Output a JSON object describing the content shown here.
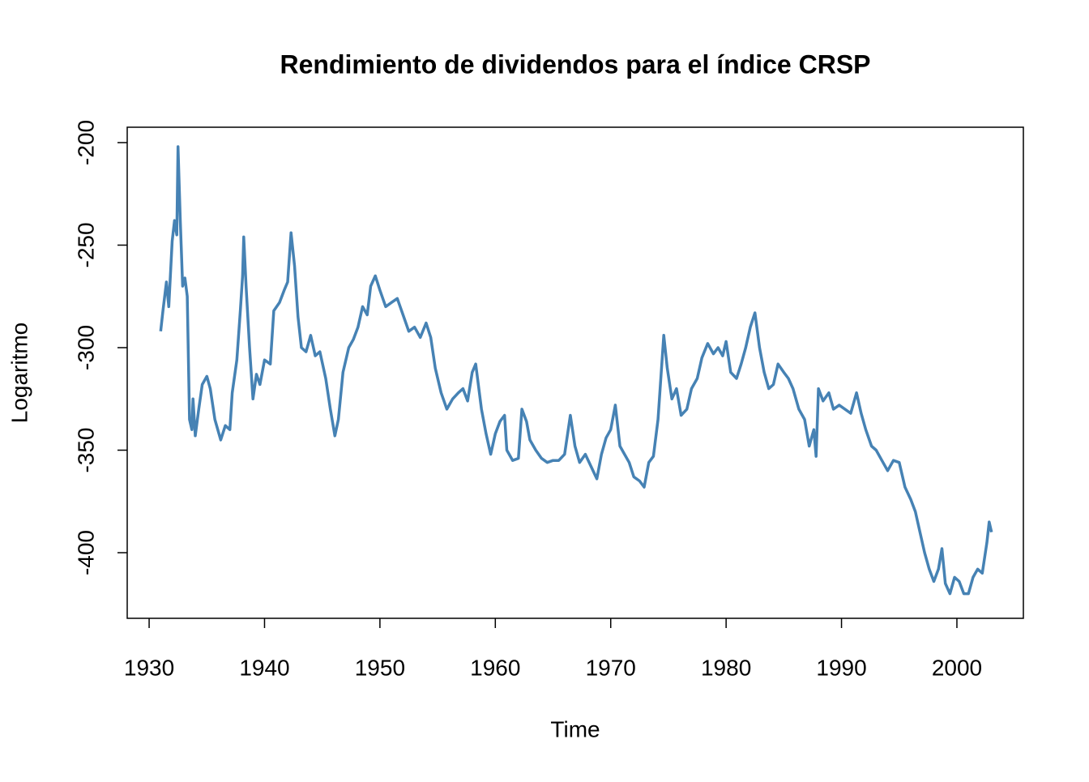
{
  "chart_data": {
    "type": "line",
    "title": "Rendimiento de dividendos para el índice CRSP",
    "x_label": "Time",
    "y_label": "Logaritmo",
    "xlim": [
      1928.1,
      2005.76
    ],
    "ylim": [
      -432,
      -192.5
    ],
    "xticks": [
      1930,
      1940,
      1950,
      1960,
      1970,
      1980,
      1990,
      2000
    ],
    "yticks": [
      -200,
      -250,
      -300,
      -350,
      -400
    ],
    "series": [
      {
        "color": "#4682b4",
        "x": [
          1931.0,
          1931.2,
          1931.5,
          1931.7,
          1932.0,
          1932.2,
          1932.4,
          1932.5,
          1932.6,
          1932.7,
          1932.9,
          1933.1,
          1933.3,
          1933.5,
          1933.7,
          1933.8,
          1934.0,
          1934.3,
          1934.6,
          1935.0,
          1935.3,
          1935.7,
          1936.2,
          1936.6,
          1937.0,
          1937.2,
          1937.6,
          1937.9,
          1938.1,
          1938.2,
          1938.4,
          1938.7,
          1939.0,
          1939.3,
          1939.6,
          1940.0,
          1940.5,
          1940.8,
          1941.3,
          1941.7,
          1942.0,
          1942.3,
          1942.6,
          1942.9,
          1943.2,
          1943.6,
          1944.0,
          1944.4,
          1944.8,
          1945.3,
          1945.7,
          1946.1,
          1946.4,
          1946.8,
          1947.3,
          1947.7,
          1948.1,
          1948.5,
          1948.9,
          1949.2,
          1949.6,
          1950.0,
          1950.5,
          1951.0,
          1951.5,
          1952.0,
          1952.5,
          1953.0,
          1953.5,
          1954.0,
          1954.4,
          1954.8,
          1955.3,
          1955.8,
          1956.3,
          1956.8,
          1957.2,
          1957.6,
          1958.0,
          1958.3,
          1958.8,
          1959.2,
          1959.6,
          1960.0,
          1960.4,
          1960.8,
          1961.0,
          1961.5,
          1962.0,
          1962.3,
          1962.7,
          1963.0,
          1963.5,
          1964.0,
          1964.5,
          1965.0,
          1965.5,
          1966.0,
          1966.5,
          1966.9,
          1967.3,
          1967.8,
          1968.3,
          1968.8,
          1969.2,
          1969.6,
          1970.0,
          1970.4,
          1970.8,
          1971.2,
          1971.6,
          1972.0,
          1972.5,
          1972.9,
          1973.3,
          1973.7,
          1974.1,
          1974.6,
          1974.9,
          1975.3,
          1975.7,
          1976.1,
          1976.6,
          1977.0,
          1977.5,
          1977.9,
          1978.4,
          1978.9,
          1979.3,
          1979.7,
          1980.0,
          1980.4,
          1980.9,
          1981.3,
          1981.7,
          1982.1,
          1982.5,
          1982.9,
          1983.3,
          1983.7,
          1984.1,
          1984.5,
          1985.0,
          1985.4,
          1985.8,
          1986.3,
          1986.8,
          1987.2,
          1987.6,
          1987.8,
          1988.0,
          1988.4,
          1988.9,
          1989.3,
          1989.8,
          1990.3,
          1990.8,
          1991.3,
          1991.7,
          1992.1,
          1992.6,
          1993.0,
          1993.5,
          1994.0,
          1994.5,
          1995.0,
          1995.5,
          1996.0,
          1996.4,
          1996.8,
          1997.2,
          1997.6,
          1998.0,
          1998.4,
          1998.7,
          1999.0,
          1999.4,
          1999.8,
          2000.2,
          2000.6,
          2001.0,
          2001.4,
          2001.8,
          2002.2,
          2002.6,
          2002.8,
          2003.0
        ],
        "values": [
          -292,
          -282,
          -268,
          -280,
          -248,
          -238,
          -245,
          -202,
          -220,
          -238,
          -270,
          -266,
          -275,
          -335,
          -340,
          -325,
          -343,
          -330,
          -318,
          -314,
          -320,
          -335,
          -345,
          -338,
          -340,
          -322,
          -306,
          -282,
          -265,
          -246,
          -270,
          -300,
          -325,
          -313,
          -318,
          -306,
          -308,
          -282,
          -278,
          -272,
          -268,
          -244,
          -260,
          -285,
          -300,
          -302,
          -294,
          -304,
          -302,
          -315,
          -330,
          -343,
          -335,
          -312,
          -300,
          -296,
          -290,
          -280,
          -284,
          -270,
          -265,
          -272,
          -280,
          -278,
          -276,
          -284,
          -292,
          -290,
          -295,
          -288,
          -295,
          -310,
          -322,
          -330,
          -325,
          -322,
          -320,
          -326,
          -312,
          -308,
          -330,
          -342,
          -352,
          -342,
          -336,
          -333,
          -350,
          -355,
          -354,
          -330,
          -336,
          -345,
          -350,
          -354,
          -356,
          -355,
          -355,
          -352,
          -333,
          -348,
          -356,
          -352,
          -358,
          -364,
          -352,
          -344,
          -340,
          -328,
          -348,
          -352,
          -356,
          -363,
          -365,
          -368,
          -356,
          -353,
          -335,
          -294,
          -310,
          -325,
          -320,
          -333,
          -330,
          -320,
          -315,
          -305,
          -298,
          -303,
          -300,
          -304,
          -297,
          -312,
          -315,
          -308,
          -300,
          -290,
          -283,
          -300,
          -312,
          -320,
          -318,
          -308,
          -312,
          -315,
          -320,
          -330,
          -335,
          -348,
          -340,
          -353,
          -320,
          -326,
          -322,
          -330,
          -328,
          -330,
          -332,
          -322,
          -332,
          -340,
          -348,
          -350,
          -355,
          -360,
          -355,
          -356,
          -368,
          -374,
          -380,
          -390,
          -400,
          -408,
          -414,
          -408,
          -398,
          -415,
          -420,
          -412,
          -414,
          -420,
          -420,
          -412,
          -408,
          -410,
          -395,
          -385,
          -390
        ]
      }
    ]
  }
}
